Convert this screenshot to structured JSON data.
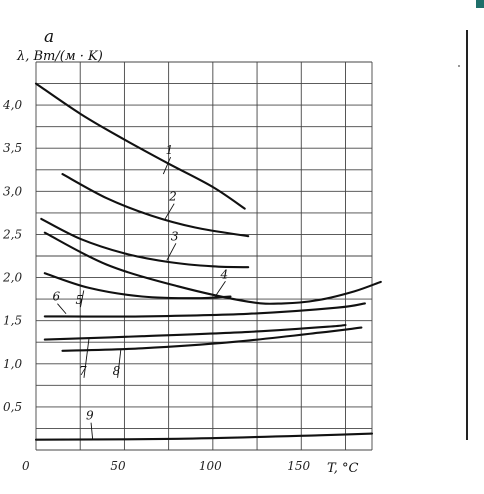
{
  "chart_data": {
    "type": "line",
    "panel_label": "a",
    "ylabel": "λ, Вт/(м · K)",
    "xlabel": "T, °C",
    "xlim": [
      0,
      190
    ],
    "ylim": [
      0,
      4.5
    ],
    "x_ticks": [
      "0",
      "50",
      "100",
      "150"
    ],
    "x_tick_values": [
      0,
      50,
      100,
      150
    ],
    "y_ticks": [
      "4,0",
      "3,5",
      "3,0",
      "2,5",
      "2,0",
      "1,5",
      "1,0",
      "0,5"
    ],
    "y_tick_values": [
      4.0,
      3.5,
      3.0,
      2.5,
      2.0,
      1.5,
      1.0,
      0.5
    ],
    "grid": true,
    "series": [
      {
        "name": "1",
        "x": [
          0,
          25,
          50,
          75,
          100,
          118
        ],
        "y": [
          4.25,
          3.9,
          3.6,
          3.32,
          3.05,
          2.8
        ]
      },
      {
        "name": "2",
        "x": [
          15,
          40,
          65,
          90,
          120
        ],
        "y": [
          3.2,
          2.92,
          2.72,
          2.58,
          2.48
        ]
      },
      {
        "name": "3",
        "x": [
          3,
          25,
          50,
          75,
          100,
          120
        ],
        "y": [
          2.68,
          2.45,
          2.28,
          2.18,
          2.13,
          2.12
        ]
      },
      {
        "name": "4",
        "x": [
          5,
          40,
          80,
          120,
          140,
          160,
          180,
          195
        ],
        "y": [
          2.52,
          2.15,
          1.9,
          1.72,
          1.7,
          1.74,
          1.84,
          1.95
        ]
      },
      {
        "name": "5",
        "x": [
          5,
          30,
          60,
          90,
          110
        ],
        "y": [
          2.05,
          1.88,
          1.78,
          1.76,
          1.78
        ]
      },
      {
        "name": "6",
        "x": [
          5,
          60,
          120,
          170,
          186
        ],
        "y": [
          1.55,
          1.55,
          1.58,
          1.65,
          1.7
        ]
      },
      {
        "name": "7",
        "x": [
          5,
          60,
          120,
          165,
          175
        ],
        "y": [
          1.28,
          1.32,
          1.37,
          1.43,
          1.45
        ]
      },
      {
        "name": "8",
        "x": [
          15,
          60,
          110,
          160,
          184
        ],
        "y": [
          1.15,
          1.18,
          1.25,
          1.36,
          1.42
        ]
      },
      {
        "name": "9",
        "x": [
          0,
          80,
          160,
          190
        ],
        "y": [
          0.12,
          0.13,
          0.17,
          0.19
        ]
      }
    ],
    "curve_labels": [
      {
        "text": "1",
        "x": 72,
        "y": 3.2,
        "tx": 75,
        "ty": 3.42
      },
      {
        "text": "2",
        "x": 73,
        "y": 2.68,
        "tx": 77,
        "ty": 2.88
      },
      {
        "text": "3",
        "x": 74,
        "y": 2.2,
        "tx": 78,
        "ty": 2.42
      },
      {
        "text": "4",
        "x": 102,
        "y": 1.8,
        "tx": 106,
        "ty": 1.98
      },
      {
        "text": "5",
        "x": 27,
        "y": 1.85,
        "tx": 24,
        "ty": 1.68
      },
      {
        "text": "6",
        "x": 17,
        "y": 1.58,
        "tx": 11,
        "ty": 1.72
      },
      {
        "text": "7",
        "x": 30,
        "y": 1.3,
        "tx": 26,
        "ty": 0.86
      },
      {
        "text": "8",
        "x": 48,
        "y": 1.17,
        "tx": 45,
        "ty": 0.86
      },
      {
        "text": "9",
        "x": 32,
        "y": 0.13,
        "tx": 30,
        "ty": 0.34
      }
    ]
  }
}
